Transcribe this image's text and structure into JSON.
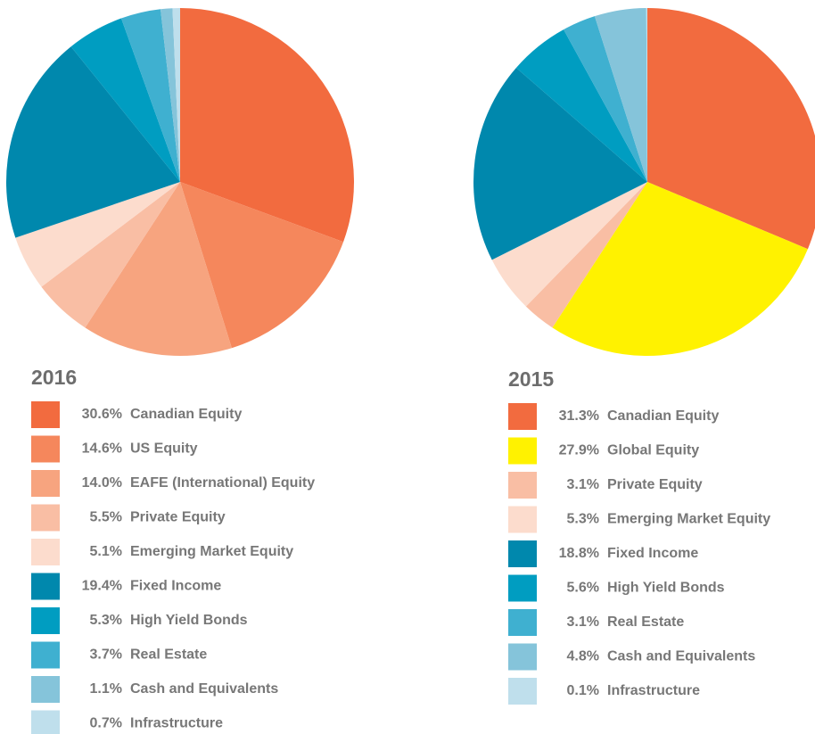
{
  "chart_data": [
    {
      "type": "pie",
      "title": "2016",
      "categories": [
        "Canadian Equity",
        "US Equity",
        "EAFE (International) Equity",
        "Private Equity",
        "Emerging Market Equity",
        "Fixed Income",
        "High Yield Bonds",
        "Real Estate",
        "Cash and Equivalents",
        "Infrastructure"
      ],
      "values": [
        30.6,
        14.6,
        14.0,
        5.5,
        5.1,
        19.4,
        5.3,
        3.7,
        1.1,
        0.7
      ],
      "value_labels": [
        "30.6%",
        "14.6%",
        "14.0%",
        "5.5%",
        "5.1%",
        "19.4%",
        "5.3%",
        "3.7%",
        "1.1%",
        "0.7%"
      ],
      "colors": [
        "#f26b3f",
        "#f5875c",
        "#f7a47f",
        "#f9bea4",
        "#fcdccd",
        "#0088ad",
        "#009dc1",
        "#3fb0d0",
        "#85c4da",
        "#bfdfec"
      ]
    },
    {
      "type": "pie",
      "title": "2015",
      "categories": [
        "Canadian Equity",
        "Global Equity",
        "Private Equity",
        "Emerging Market Equity",
        "Fixed Income",
        "High Yield Bonds",
        "Real Estate",
        "Cash and Equivalents",
        "Infrastructure"
      ],
      "values": [
        31.3,
        27.9,
        3.1,
        5.3,
        18.8,
        5.6,
        3.1,
        4.8,
        0.1
      ],
      "value_labels": [
        "31.3%",
        "27.9%",
        "3.1%",
        "5.3%",
        "18.8%",
        "5.6%",
        "3.1%",
        "4.8%",
        "0.1%"
      ],
      "colors": [
        "#f26b3f",
        "#fff200",
        "#f9bea4",
        "#fcdccd",
        "#0088ad",
        "#009dc1",
        "#3fb0d0",
        "#85c4da",
        "#bfdfec"
      ]
    }
  ]
}
